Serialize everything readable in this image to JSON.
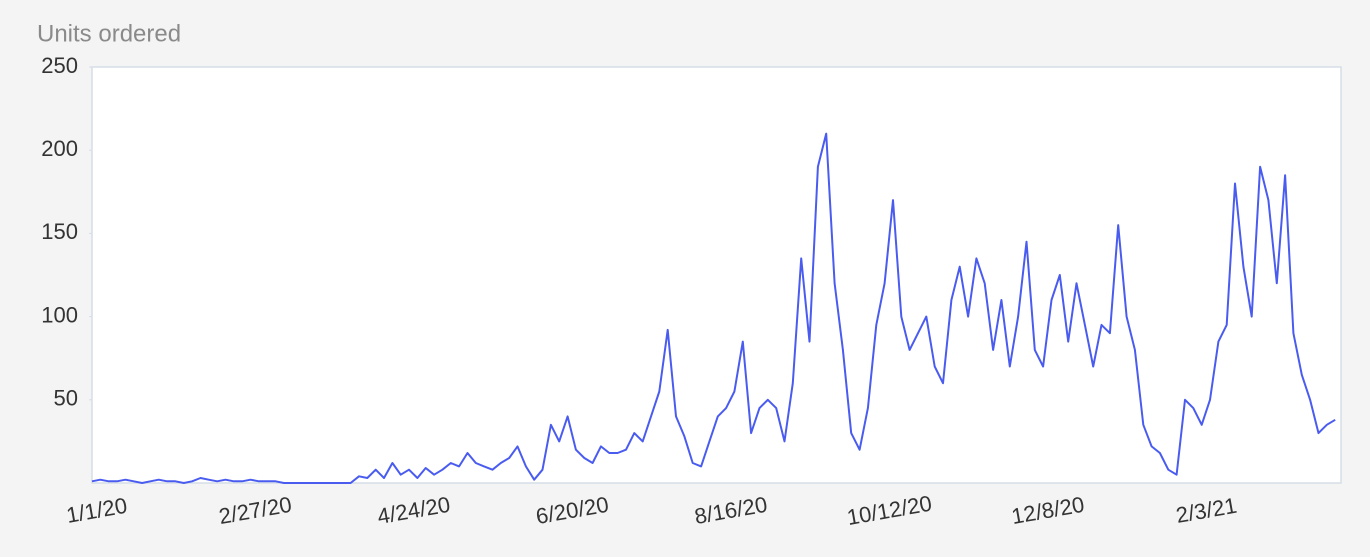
{
  "chart_data": {
    "type": "line",
    "title": "Units ordered",
    "categories": [
      "1/1/20",
      null,
      null,
      null,
      null,
      null,
      null,
      null,
      null,
      null,
      null,
      null,
      null,
      null,
      null,
      null,
      null,
      null,
      null,
      "2/27/20",
      null,
      null,
      null,
      null,
      null,
      null,
      null,
      null,
      null,
      null,
      null,
      null,
      null,
      null,
      null,
      null,
      null,
      null,
      "4/24/20",
      null,
      null,
      null,
      null,
      null,
      null,
      null,
      null,
      null,
      null,
      null,
      null,
      null,
      null,
      null,
      null,
      null,
      null,
      "6/20/20",
      null,
      null,
      null,
      null,
      null,
      null,
      null,
      null,
      null,
      null,
      null,
      null,
      null,
      null,
      null,
      null,
      null,
      null,
      "8/16/20",
      null,
      null,
      null,
      null,
      null,
      null,
      null,
      null,
      null,
      null,
      null,
      null,
      null,
      null,
      null,
      null,
      null,
      null,
      "10/12/20",
      null,
      null,
      null,
      null,
      null,
      null,
      null,
      null,
      null,
      null,
      null,
      null,
      null,
      null,
      null,
      null,
      null,
      null,
      "12/8/20",
      null,
      null,
      null,
      null,
      null,
      null,
      null,
      null,
      null,
      null,
      null,
      null,
      null,
      null,
      null,
      null,
      null,
      null,
      "2/3/21",
      null,
      null,
      null,
      null,
      null,
      null,
      null,
      null,
      null,
      null,
      null,
      null,
      null,
      null,
      null,
      null
    ],
    "values": [
      1,
      2,
      1,
      1,
      2,
      1,
      0,
      1,
      2,
      1,
      1,
      0,
      1,
      3,
      2,
      1,
      2,
      1,
      1,
      2,
      1,
      1,
      1,
      0,
      0,
      0,
      0,
      0,
      0,
      0,
      0,
      0,
      4,
      3,
      8,
      3,
      12,
      5,
      8,
      3,
      9,
      5,
      8,
      12,
      10,
      18,
      12,
      10,
      8,
      12,
      15,
      22,
      10,
      2,
      8,
      35,
      25,
      40,
      20,
      15,
      12,
      22,
      18,
      18,
      20,
      30,
      25,
      40,
      55,
      92,
      40,
      28,
      12,
      10,
      25,
      40,
      45,
      55,
      85,
      30,
      45,
      50,
      45,
      25,
      60,
      135,
      85,
      190,
      210,
      120,
      80,
      30,
      20,
      45,
      95,
      120,
      170,
      100,
      80,
      90,
      100,
      70,
      60,
      110,
      130,
      100,
      135,
      120,
      80,
      110,
      70,
      100,
      145,
      80,
      70,
      110,
      125,
      85,
      120,
      95,
      70,
      95,
      90,
      155,
      100,
      80,
      35,
      22,
      18,
      8,
      5,
      50,
      45,
      35,
      50,
      85,
      95,
      180,
      130,
      100,
      190,
      170,
      120,
      185,
      90,
      65,
      50,
      30,
      35,
      38
    ],
    "color": "#4a5cf0",
    "ylim": [
      0,
      250
    ],
    "yticks": [
      50,
      100,
      150,
      200,
      250
    ],
    "grid": false
  }
}
